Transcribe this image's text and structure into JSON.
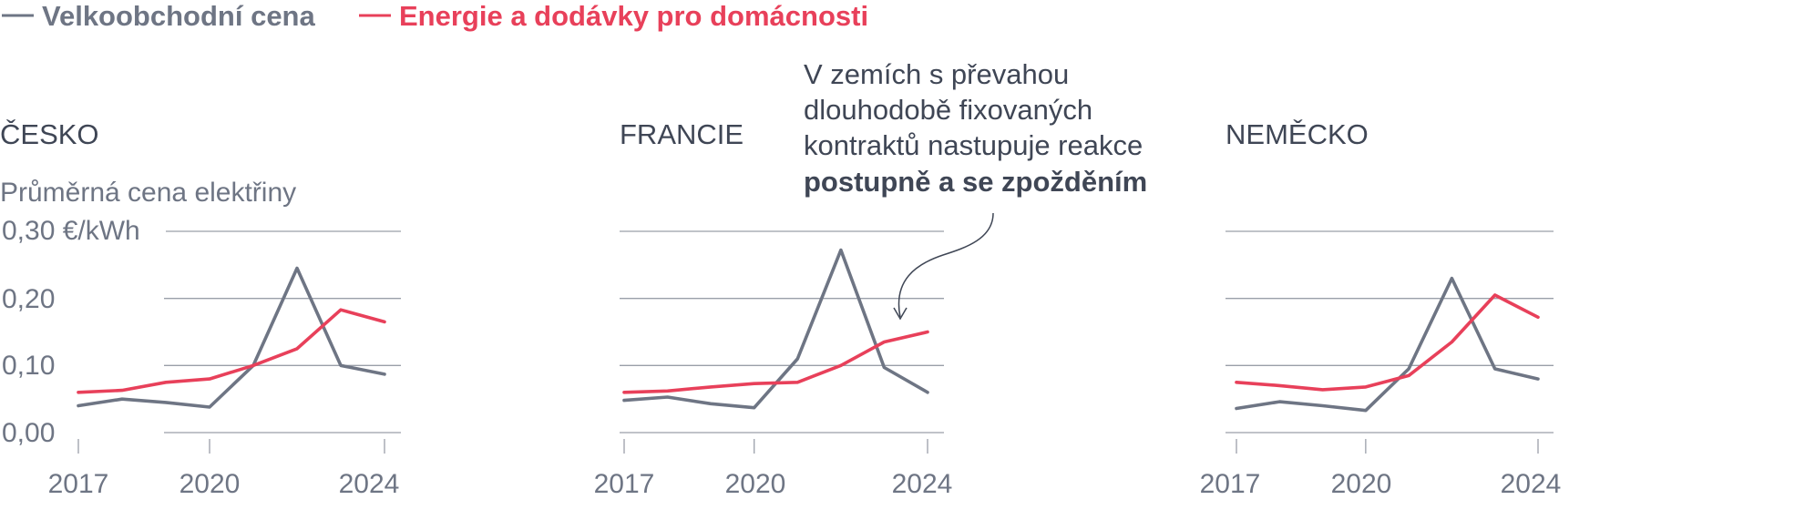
{
  "legend": [
    {
      "label": "Velkoobchodní cena",
      "color": "#6e7584"
    },
    {
      "label": "Energie a dodávky pro domácnosti",
      "color": "#e8405a"
    }
  ],
  "subtitle": "Průměrná cena elektřiny",
  "unit_label": "0,30 €/kWh",
  "y_tick_labels": [
    "0,20",
    "0,10",
    "0,00"
  ],
  "x_tick_labels": [
    "2017",
    "2020",
    "2024"
  ],
  "annotation": {
    "lines": [
      "V zemích s převahou",
      "dlouhodobě fixovaných",
      "kontraktů nastupuje reakce"
    ],
    "bold_line": "postupně a se zpožděním"
  },
  "chart_data": [
    {
      "type": "line",
      "title": "ČESKO",
      "x": [
        2017,
        2018,
        2019,
        2020,
        2021,
        2022,
        2023,
        2024
      ],
      "ylim": [
        0,
        0.3
      ],
      "series": [
        {
          "name": "Velkoobchodní cena",
          "color": "#6e7584",
          "values": [
            0.04,
            0.05,
            0.045,
            0.038,
            0.1,
            0.245,
            0.1,
            0.087
          ]
        },
        {
          "name": "Energie a dodávky pro domácnosti",
          "color": "#e8405a",
          "values": [
            0.06,
            0.063,
            0.075,
            0.08,
            0.1,
            0.125,
            0.183,
            0.165
          ]
        }
      ]
    },
    {
      "type": "line",
      "title": "FRANCIE",
      "x": [
        2017,
        2018,
        2019,
        2020,
        2021,
        2022,
        2023,
        2024
      ],
      "ylim": [
        0,
        0.3
      ],
      "series": [
        {
          "name": "Velkoobchodní cena",
          "color": "#6e7584",
          "values": [
            0.048,
            0.053,
            0.043,
            0.037,
            0.11,
            0.272,
            0.097,
            0.06
          ]
        },
        {
          "name": "Energie a dodávky pro domácnosti",
          "color": "#e8405a",
          "values": [
            0.06,
            0.062,
            0.068,
            0.073,
            0.075,
            0.1,
            0.135,
            0.15
          ]
        }
      ]
    },
    {
      "type": "line",
      "title": "NEMĚCKO",
      "x": [
        2017,
        2018,
        2019,
        2020,
        2021,
        2022,
        2023,
        2024
      ],
      "ylim": [
        0,
        0.3
      ],
      "series": [
        {
          "name": "Velkoobchodní cena",
          "color": "#6e7584",
          "values": [
            0.036,
            0.046,
            0.04,
            0.033,
            0.095,
            0.23,
            0.095,
            0.08
          ]
        },
        {
          "name": "Energie a dodávky pro domácnosti",
          "color": "#e8405a",
          "values": [
            0.075,
            0.07,
            0.064,
            0.068,
            0.085,
            0.135,
            0.205,
            0.172
          ]
        }
      ]
    }
  ]
}
